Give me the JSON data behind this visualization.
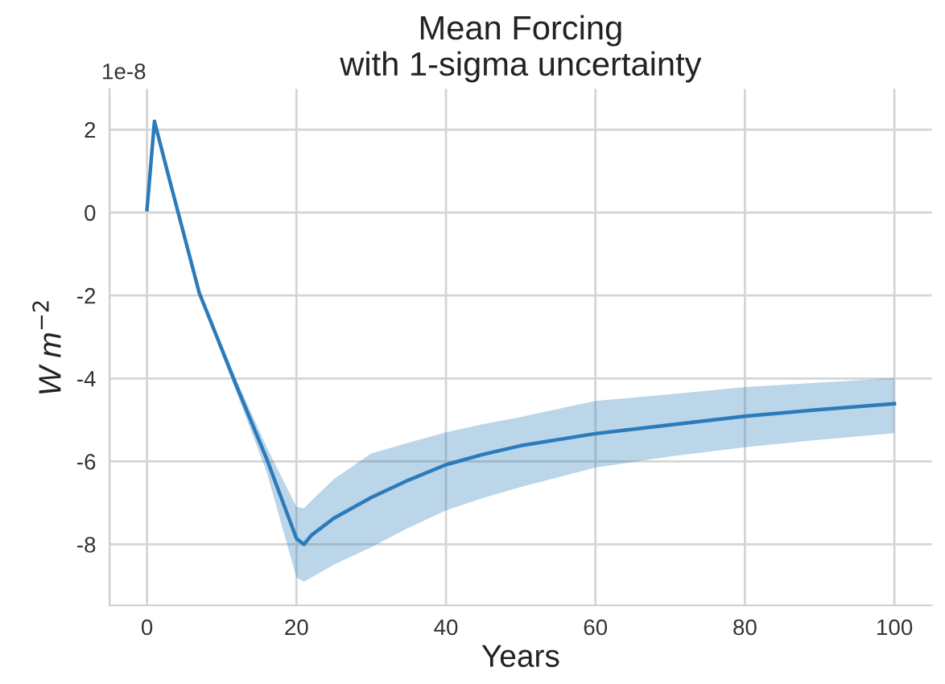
{
  "chart_data": {
    "type": "line",
    "title": "Mean Forcing\nwith 1-sigma uncertainty",
    "xlabel": "Years",
    "ylabel": "W m$^{−2}$",
    "annotations": [
      "1e-8"
    ],
    "series": [
      {
        "color": "#2b7bba",
        "x": [
          0,
          1,
          3,
          7,
          12,
          16,
          20,
          21,
          22,
          25,
          30,
          35,
          40,
          45,
          50,
          60,
          70,
          80,
          90,
          100
        ],
        "values": [
          0.07,
          2.2,
          0.8,
          -1.94,
          -4.19,
          -5.93,
          -7.86,
          -8.0,
          -7.78,
          -7.37,
          -6.87,
          -6.45,
          -6.08,
          -5.83,
          -5.62,
          -5.33,
          -5.12,
          -4.91,
          -4.75,
          -4.61
        ],
        "lower": [
          0.07,
          2.2,
          0.8,
          -1.99,
          -4.35,
          -6.25,
          -8.8,
          -8.9,
          -8.8,
          -8.49,
          -8.07,
          -7.6,
          -7.18,
          -6.88,
          -6.62,
          -6.15,
          -5.88,
          -5.66,
          -5.48,
          -5.32
        ],
        "upper": [
          0.07,
          2.2,
          0.8,
          -1.89,
          -4.05,
          -5.65,
          -7.1,
          -7.13,
          -6.95,
          -6.43,
          -5.81,
          -5.55,
          -5.3,
          -5.1,
          -4.93,
          -4.54,
          -4.38,
          -4.21,
          -4.1,
          -3.99
        ]
      }
    ],
    "xlim": [
      -5,
      105
    ],
    "xticks": [
      0,
      20,
      40,
      60,
      80,
      100
    ],
    "ylim": [
      -9.47,
      2.98
    ],
    "yticks": [
      2,
      0,
      -2,
      -4,
      -6,
      -8
    ],
    "grid": true
  }
}
